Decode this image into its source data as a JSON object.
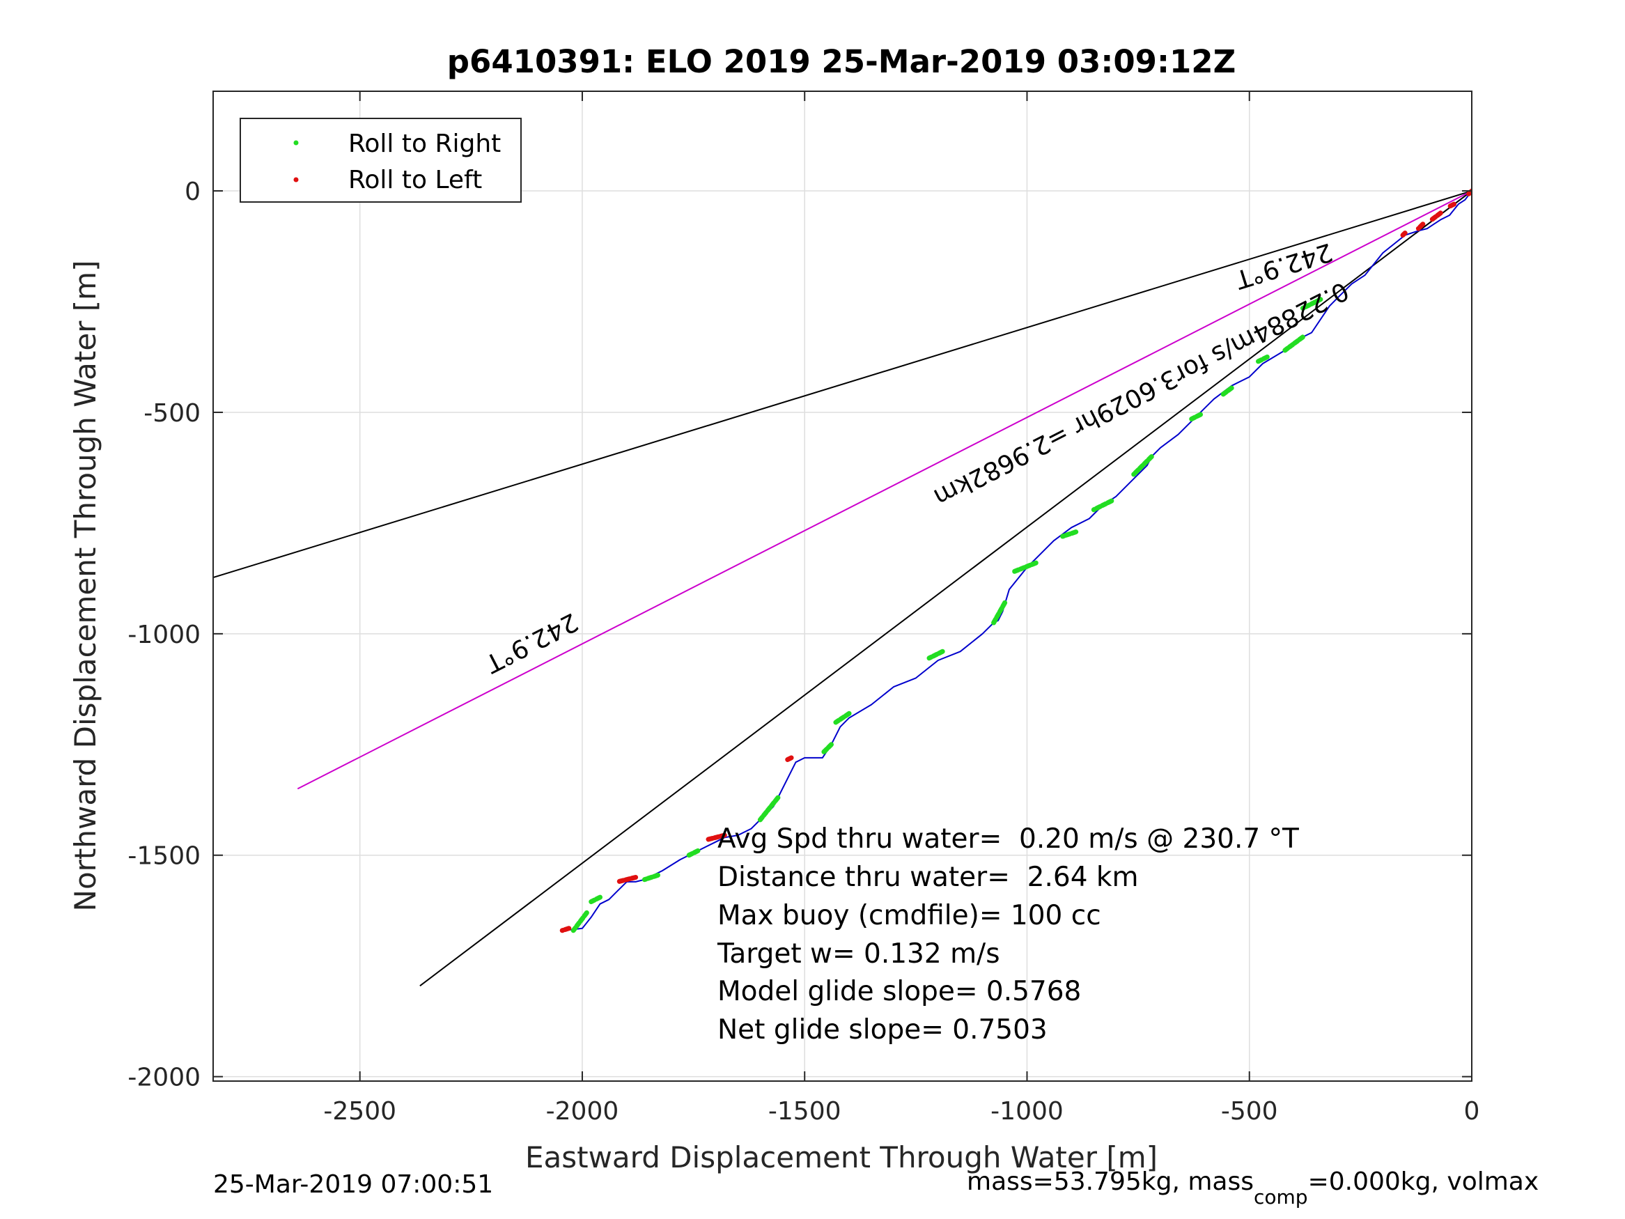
{
  "chart_data": {
    "type": "line",
    "title": "p6410391: ELO 2019 25-Mar-2019 03:09:12Z",
    "xlabel": "Eastward Displacement Through Water [m]",
    "ylabel": "Northward Displacement Through Water [m]",
    "xlim": [
      -2830,
      0
    ],
    "ylim": [
      -2010,
      225
    ],
    "xticks": [
      -2500,
      -2000,
      -1500,
      -1000,
      -500,
      0
    ],
    "yticks": [
      0,
      -500,
      -1000,
      -1500,
      -2000
    ],
    "xtick_labels": [
      "-2500",
      "-2000",
      "-1500",
      "-1000",
      "-500",
      "0"
    ],
    "ytick_labels": [
      "0",
      "-500",
      "-1000",
      "-1500",
      "-2000"
    ],
    "grid": true,
    "legend_position": "top-left",
    "legend": [
      {
        "label": "Roll to Right",
        "color": "#22dd22"
      },
      {
        "label": "Roll to Left",
        "color": "#e01010"
      }
    ],
    "reference_lines": [
      {
        "color": "#000000",
        "x": [
          0,
          -2830
        ],
        "y": [
          0,
          -873
        ]
      },
      {
        "color": "#000000",
        "x": [
          0,
          -2365
        ],
        "y": [
          0,
          -1795
        ]
      },
      {
        "color": "#cc00cc",
        "x": [
          0,
          -2640
        ],
        "y": [
          0,
          -1350
        ]
      }
    ],
    "track": {
      "color": "#0000cc",
      "x": [
        0,
        -15,
        -30,
        -50,
        -70,
        -85,
        -100,
        -120,
        -150,
        -200,
        -240,
        -270,
        -300,
        -320,
        -340,
        -360,
        -380,
        -420,
        -470,
        -500,
        -540,
        -580,
        -620,
        -660,
        -700,
        -720,
        -730,
        -760,
        -800,
        -830,
        -860,
        -900,
        -940,
        -980,
        -1000,
        -1040,
        -1055,
        -1065,
        -1075,
        -1100,
        -1150,
        -1200,
        -1250,
        -1300,
        -1350,
        -1400,
        -1420,
        -1440,
        -1460,
        -1500,
        -1520,
        -1540,
        -1560,
        -1570,
        -1590,
        -1620,
        -1650,
        -1680,
        -1700,
        -1740,
        -1780,
        -1820,
        -1860,
        -1880,
        -1900,
        -1920,
        -1940,
        -1960,
        -1980,
        -2000,
        -2040
      ],
      "y": [
        0,
        -20,
        -30,
        -55,
        -65,
        -75,
        -85,
        -90,
        -100,
        -140,
        -190,
        -210,
        -240,
        -260,
        -290,
        -320,
        -330,
        -360,
        -390,
        -420,
        -440,
        -470,
        -510,
        -550,
        -580,
        -600,
        -620,
        -650,
        -690,
        -710,
        -740,
        -760,
        -790,
        -830,
        -850,
        -900,
        -950,
        -970,
        -975,
        -1000,
        -1040,
        -1060,
        -1100,
        -1120,
        -1160,
        -1190,
        -1210,
        -1250,
        -1280,
        -1280,
        -1290,
        -1330,
        -1370,
        -1390,
        -1410,
        -1440,
        -1455,
        -1460,
        -1470,
        -1490,
        -1510,
        -1535,
        -1555,
        -1560,
        -1560,
        -1580,
        -1600,
        -1610,
        -1640,
        -1665,
        -1670
      ]
    },
    "roll_right_segments": [
      {
        "x": [
          -340,
          -380
        ],
        "y": [
          -245,
          -265
        ]
      },
      {
        "x": [
          -380,
          -420
        ],
        "y": [
          -330,
          -360
        ]
      },
      {
        "x": [
          -460,
          -480
        ],
        "y": [
          -375,
          -385
        ]
      },
      {
        "x": [
          -540,
          -560
        ],
        "y": [
          -445,
          -460
        ]
      },
      {
        "x": [
          -610,
          -630
        ],
        "y": [
          -505,
          -515
        ]
      },
      {
        "x": [
          -720,
          -760
        ],
        "y": [
          -600,
          -640
        ]
      },
      {
        "x": [
          -810,
          -850
        ],
        "y": [
          -700,
          -720
        ]
      },
      {
        "x": [
          -890,
          -920
        ],
        "y": [
          -770,
          -780
        ]
      },
      {
        "x": [
          -980,
          -1030
        ],
        "y": [
          -840,
          -860
        ]
      },
      {
        "x": [
          -1050,
          -1075
        ],
        "y": [
          -930,
          -975
        ]
      },
      {
        "x": [
          -1190,
          -1220
        ],
        "y": [
          -1040,
          -1055
        ]
      },
      {
        "x": [
          -1400,
          -1430
        ],
        "y": [
          -1180,
          -1200
        ]
      },
      {
        "x": [
          -1440,
          -1460
        ],
        "y": [
          -1250,
          -1270
        ]
      },
      {
        "x": [
          -1560,
          -1600
        ],
        "y": [
          -1370,
          -1420
        ]
      },
      {
        "x": [
          -1740,
          -1760
        ],
        "y": [
          -1490,
          -1500
        ]
      },
      {
        "x": [
          -1830,
          -1860
        ],
        "y": [
          -1545,
          -1555
        ]
      },
      {
        "x": [
          -1960,
          -1980
        ],
        "y": [
          -1595,
          -1605
        ]
      },
      {
        "x": [
          -1990,
          -2020
        ],
        "y": [
          -1630,
          -1670
        ]
      }
    ],
    "roll_left_segments": [
      {
        "x": [
          0,
          -10
        ],
        "y": [
          0,
          -10
        ]
      },
      {
        "x": [
          -40,
          -50
        ],
        "y": [
          -30,
          -35
        ]
      },
      {
        "x": [
          -70,
          -90
        ],
        "y": [
          -50,
          -65
        ]
      },
      {
        "x": [
          -110,
          -120
        ],
        "y": [
          -75,
          -85
        ]
      },
      {
        "x": [
          -150,
          -155
        ],
        "y": [
          -95,
          -100
        ]
      },
      {
        "x": [
          -1530,
          -1540
        ],
        "y": [
          -1280,
          -1285
        ]
      },
      {
        "x": [
          -1680,
          -1720
        ],
        "y": [
          -1455,
          -1465
        ]
      },
      {
        "x": [
          -1880,
          -1920
        ],
        "y": [
          -1550,
          -1560
        ]
      },
      {
        "x": [
          -2030,
          -2045
        ],
        "y": [
          -1665,
          -1670
        ]
      }
    ],
    "annotations": {
      "heading_upper": "242.9°T",
      "heading_lower": "242.9°T",
      "speed_label": "0.22884m/s for3.6029hr =2.9682km"
    },
    "stats": [
      "Avg Spd thru water=  0.20 m/s @ 230.7 °T",
      "Distance thru water=  2.64 km",
      "Max buoy (cmdfile)= 100 cc",
      "Target w= 0.132 m/s",
      "Model glide slope= 0.5768",
      "Net glide slope= 0.7503"
    ],
    "footer_left": "25-Mar-2019 07:00:51",
    "footer_right": {
      "part1": "mass=53.795kg, mass",
      "sub": "comp",
      "part2": "=0.000kg, volmax"
    }
  }
}
